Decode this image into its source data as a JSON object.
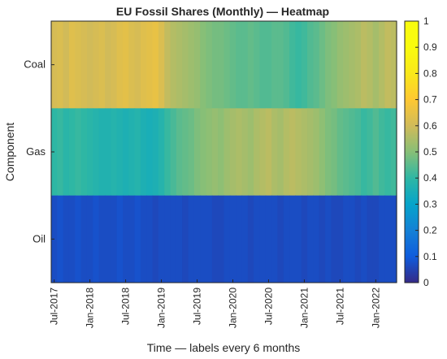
{
  "chart_data": {
    "type": "heatmap",
    "title": "EU Fossil Shares (Monthly) — Heatmap",
    "xlabel": "Time — labels every 6 months",
    "ylabel": "Component",
    "rows": [
      "Coal",
      "Gas",
      "Oil"
    ],
    "x_tick_labels": [
      "Jul-2017",
      "Jan-2018",
      "Jul-2018",
      "Jan-2019",
      "Jul-2019",
      "Jan-2020",
      "Jul-2020",
      "Jan-2021",
      "Jul-2021",
      "Jan-2022"
    ],
    "x_tick_month_index": [
      0,
      6,
      12,
      18,
      24,
      30,
      36,
      42,
      48,
      54
    ],
    "months_count": 58,
    "values": [
      [
        0.61,
        0.62,
        0.6,
        0.63,
        0.62,
        0.61,
        0.6,
        0.61,
        0.62,
        0.6,
        0.61,
        0.63,
        0.64,
        0.62,
        0.61,
        0.63,
        0.64,
        0.65,
        0.62,
        0.58,
        0.56,
        0.55,
        0.54,
        0.53,
        0.52,
        0.5,
        0.49,
        0.48,
        0.48,
        0.47,
        0.46,
        0.45,
        0.45,
        0.46,
        0.45,
        0.44,
        0.44,
        0.45,
        0.45,
        0.44,
        0.42,
        0.41,
        0.42,
        0.44,
        0.45,
        0.47,
        0.49,
        0.5,
        0.52,
        0.53,
        0.54,
        0.55,
        0.57,
        0.56,
        0.54,
        0.56,
        0.58,
        0.57
      ],
      [
        0.4,
        0.41,
        0.39,
        0.4,
        0.41,
        0.4,
        0.39,
        0.38,
        0.37,
        0.37,
        0.38,
        0.37,
        0.36,
        0.37,
        0.38,
        0.36,
        0.35,
        0.36,
        0.38,
        0.41,
        0.43,
        0.45,
        0.46,
        0.47,
        0.49,
        0.5,
        0.51,
        0.52,
        0.51,
        0.53,
        0.54,
        0.55,
        0.54,
        0.53,
        0.55,
        0.56,
        0.57,
        0.55,
        0.54,
        0.56,
        0.57,
        0.56,
        0.55,
        0.54,
        0.53,
        0.51,
        0.49,
        0.48,
        0.46,
        0.45,
        0.44,
        0.43,
        0.41,
        0.42,
        0.44,
        0.42,
        0.41,
        0.42
      ],
      [
        0.07,
        0.08,
        0.07,
        0.07,
        0.08,
        0.07,
        0.07,
        0.08,
        0.07,
        0.07,
        0.07,
        0.08,
        0.07,
        0.07,
        0.08,
        0.07,
        0.07,
        0.06,
        0.07,
        0.07,
        0.07,
        0.07,
        0.06,
        0.07,
        0.07,
        0.07,
        0.07,
        0.06,
        0.06,
        0.07,
        0.07,
        0.07,
        0.07,
        0.06,
        0.07,
        0.07,
        0.07,
        0.07,
        0.06,
        0.07,
        0.07,
        0.07,
        0.06,
        0.07,
        0.07,
        0.06,
        0.07,
        0.06,
        0.06,
        0.07,
        0.07,
        0.06,
        0.07,
        0.06,
        0.06,
        0.07,
        0.07,
        0.07
      ]
    ],
    "colormap": "parula",
    "clim": [
      0,
      1
    ],
    "colorbar_ticks": [
      0,
      0.1,
      0.2,
      0.3,
      0.4,
      0.5,
      0.6,
      0.7,
      0.8,
      0.9,
      1
    ],
    "colorbar_tick_labels": [
      "0",
      "0.1",
      "0.2",
      "0.3",
      "0.4",
      "0.5",
      "0.6",
      "0.7",
      "0.8",
      "0.9",
      "1"
    ],
    "grid": false,
    "legend": "colorbar-right"
  }
}
